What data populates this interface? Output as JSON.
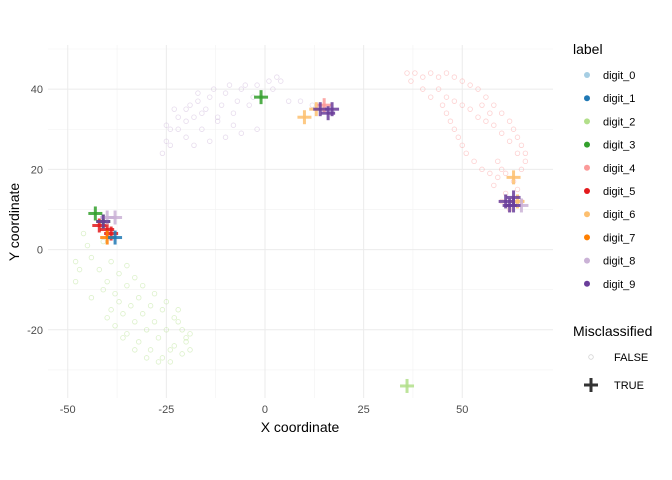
{
  "chart_data": {
    "type": "scatter",
    "xlabel": "X coordinate",
    "ylabel": "Y coordinate",
    "xlim": [
      -55,
      73
    ],
    "ylim": [
      -37,
      51
    ],
    "x_ticks": [
      -50,
      -25,
      0,
      25,
      50
    ],
    "y_ticks": [
      -20,
      0,
      20,
      40
    ],
    "x_tick_labels": [
      "-50",
      "-25",
      "0",
      "25",
      "50"
    ],
    "y_tick_labels": [
      "-20",
      "0",
      "20",
      "40"
    ],
    "grid": true,
    "legend_position": "right",
    "legends": [
      {
        "title": "label",
        "entries": [
          {
            "label": "digit_0",
            "color": "#a6cee3"
          },
          {
            "label": "digit_1",
            "color": "#1f78b4"
          },
          {
            "label": "digit_2",
            "color": "#b2df8a"
          },
          {
            "label": "digit_3",
            "color": "#33a02c"
          },
          {
            "label": "digit_4",
            "color": "#fb9a99"
          },
          {
            "label": "digit_5",
            "color": "#e31a1c"
          },
          {
            "label": "digit_6",
            "color": "#fdbf6f"
          },
          {
            "label": "digit_7",
            "color": "#ff7f00"
          },
          {
            "label": "digit_8",
            "color": "#cab2d6"
          },
          {
            "label": "digit_9",
            "color": "#6a3d9a"
          }
        ]
      },
      {
        "title": "Misclassified",
        "entries": [
          {
            "label": "FALSE",
            "shape": "circle"
          },
          {
            "label": "TRUE",
            "shape": "plus"
          }
        ]
      }
    ],
    "clusters": [
      {
        "label": "digit_8",
        "color": "#cab2d6",
        "points": [
          [
            -26,
            24
          ],
          [
            -25,
            27
          ],
          [
            -24,
            30
          ],
          [
            -22,
            33
          ],
          [
            -20,
            35
          ],
          [
            -17,
            37
          ],
          [
            -14,
            38
          ],
          [
            -10,
            39
          ],
          [
            -6,
            40
          ],
          [
            -2,
            41
          ],
          [
            1,
            42
          ],
          [
            3,
            43
          ],
          [
            4,
            42
          ],
          [
            2,
            40
          ],
          [
            -1,
            38
          ],
          [
            -4,
            36
          ],
          [
            -8,
            34
          ],
          [
            -12,
            32
          ],
          [
            -16,
            30
          ],
          [
            -20,
            28
          ],
          [
            -24,
            26
          ],
          [
            -18,
            26
          ],
          [
            -14,
            27
          ],
          [
            -10,
            28
          ],
          [
            -6,
            29
          ],
          [
            -2,
            30
          ],
          [
            -8,
            31
          ],
          [
            -12,
            33
          ],
          [
            -16,
            34
          ],
          [
            -20,
            32
          ],
          [
            -22,
            30
          ],
          [
            -19,
            36
          ],
          [
            -15,
            35
          ],
          [
            -11,
            36
          ],
          [
            -7,
            37
          ],
          [
            -3,
            38
          ],
          [
            -25,
            31
          ],
          [
            -23,
            35
          ],
          [
            -18,
            33
          ],
          [
            6,
            37
          ],
          [
            9,
            37
          ],
          [
            12,
            36
          ],
          [
            15,
            35
          ],
          [
            17,
            34
          ],
          [
            -5,
            41
          ],
          [
            -9,
            41
          ],
          [
            -13,
            40
          ],
          [
            -17,
            39
          ]
        ]
      },
      {
        "label": "digit_4",
        "color": "#fb9a99",
        "points": [
          [
            36,
            44
          ],
          [
            37,
            42
          ],
          [
            38,
            44
          ],
          [
            40,
            43
          ],
          [
            42,
            44
          ],
          [
            44,
            43
          ],
          [
            46,
            44
          ],
          [
            48,
            43
          ],
          [
            50,
            42
          ],
          [
            52,
            41
          ],
          [
            54,
            40
          ],
          [
            56,
            38
          ],
          [
            58,
            36
          ],
          [
            60,
            34
          ],
          [
            62,
            32
          ],
          [
            63,
            30
          ],
          [
            64,
            28
          ],
          [
            65,
            26
          ],
          [
            66,
            24
          ],
          [
            66,
            22
          ],
          [
            65,
            20
          ],
          [
            64,
            24
          ],
          [
            62,
            27
          ],
          [
            60,
            29
          ],
          [
            58,
            31
          ],
          [
            56,
            32
          ],
          [
            54,
            33
          ],
          [
            52,
            35
          ],
          [
            50,
            36
          ],
          [
            48,
            37
          ],
          [
            46,
            38
          ],
          [
            45,
            36
          ],
          [
            46,
            34
          ],
          [
            47,
            32
          ],
          [
            48,
            30
          ],
          [
            49,
            28
          ],
          [
            50,
            26
          ],
          [
            51,
            24
          ],
          [
            53,
            22
          ],
          [
            55,
            20
          ],
          [
            57,
            19
          ],
          [
            59,
            18
          ],
          [
            61,
            19
          ],
          [
            63,
            17
          ],
          [
            61,
            14
          ],
          [
            60,
            12
          ],
          [
            62,
            10
          ],
          [
            65,
            12
          ],
          [
            64,
            15
          ],
          [
            44,
            40
          ],
          [
            40,
            40
          ],
          [
            42,
            38
          ],
          [
            55,
            36
          ],
          [
            57,
            34
          ],
          [
            59,
            22
          ],
          [
            60,
            20
          ],
          [
            58,
            16
          ]
        ]
      },
      {
        "label": "digit_2",
        "color": "#b2df8a",
        "points": [
          [
            -44,
            -12
          ],
          [
            -41,
            -10
          ],
          [
            -38,
            -11
          ],
          [
            -35,
            -9
          ],
          [
            -32,
            -12
          ],
          [
            -29,
            -14
          ],
          [
            -26,
            -15
          ],
          [
            -23,
            -17
          ],
          [
            -21,
            -20
          ],
          [
            -20,
            -23
          ],
          [
            -21,
            -26
          ],
          [
            -24,
            -25
          ],
          [
            -27,
            -22
          ],
          [
            -30,
            -20
          ],
          [
            -33,
            -18
          ],
          [
            -36,
            -16
          ],
          [
            -39,
            -15
          ],
          [
            -40,
            -17
          ],
          [
            -38,
            -19
          ],
          [
            -35,
            -21
          ],
          [
            -32,
            -23
          ],
          [
            -29,
            -25
          ],
          [
            -26,
            -27
          ],
          [
            -23,
            -24
          ],
          [
            -20,
            -22
          ],
          [
            -22,
            -18
          ],
          [
            -25,
            -20
          ],
          [
            -28,
            -18
          ],
          [
            -31,
            -16
          ],
          [
            -34,
            -14
          ],
          [
            -37,
            -13
          ],
          [
            -40,
            -8
          ],
          [
            -42,
            -5
          ],
          [
            -44,
            -2
          ],
          [
            -45,
            1
          ],
          [
            -46,
            4
          ],
          [
            -47,
            -5
          ],
          [
            -48,
            -8
          ],
          [
            -48,
            -3
          ],
          [
            -41,
            2
          ],
          [
            -39,
            -3
          ],
          [
            -37,
            -6
          ],
          [
            -35,
            -4
          ],
          [
            -33,
            -7
          ],
          [
            -31,
            -9
          ],
          [
            -28,
            -11
          ],
          [
            -25,
            -13
          ],
          [
            -22,
            -15
          ],
          [
            -19,
            -21
          ],
          [
            -19,
            -25
          ],
          [
            -36,
            -22
          ],
          [
            -33,
            -25
          ],
          [
            -30,
            -27
          ],
          [
            -27,
            -28
          ],
          [
            -24,
            -28
          ]
        ]
      }
    ],
    "misclassified": [
      {
        "label": "digit_3",
        "x": -43,
        "y": 9
      },
      {
        "label": "digit_3",
        "x": -41,
        "y": 7
      },
      {
        "label": "digit_5",
        "x": -42,
        "y": 6
      },
      {
        "label": "digit_5",
        "x": -40,
        "y": 5
      },
      {
        "label": "digit_5",
        "x": -39,
        "y": 4
      },
      {
        "label": "digit_7",
        "x": -40,
        "y": 3
      },
      {
        "label": "digit_8",
        "x": -40,
        "y": 8
      },
      {
        "label": "digit_8",
        "x": -38,
        "y": 8
      },
      {
        "label": "digit_9",
        "x": -41,
        "y": 7
      },
      {
        "label": "digit_1",
        "x": -38,
        "y": 3
      },
      {
        "label": "digit_3",
        "x": -1,
        "y": 38
      },
      {
        "label": "digit_6",
        "x": 10,
        "y": 33
      },
      {
        "label": "digit_6",
        "x": 13,
        "y": 35
      },
      {
        "label": "digit_4",
        "x": 15,
        "y": 36
      },
      {
        "label": "digit_9",
        "x": 14,
        "y": 35
      },
      {
        "label": "digit_9",
        "x": 16,
        "y": 34
      },
      {
        "label": "digit_9",
        "x": 17,
        "y": 35
      },
      {
        "label": "digit_6",
        "x": 63,
        "y": 18
      },
      {
        "label": "digit_6",
        "x": 64,
        "y": 12
      },
      {
        "label": "digit_8",
        "x": 65,
        "y": 11
      },
      {
        "label": "digit_9",
        "x": 61,
        "y": 12
      },
      {
        "label": "digit_9",
        "x": 63,
        "y": 13
      },
      {
        "label": "digit_9",
        "x": 63,
        "y": 11
      },
      {
        "label": "digit_9",
        "x": 62,
        "y": 11
      },
      {
        "label": "digit_2",
        "x": 36,
        "y": -34
      }
    ]
  }
}
